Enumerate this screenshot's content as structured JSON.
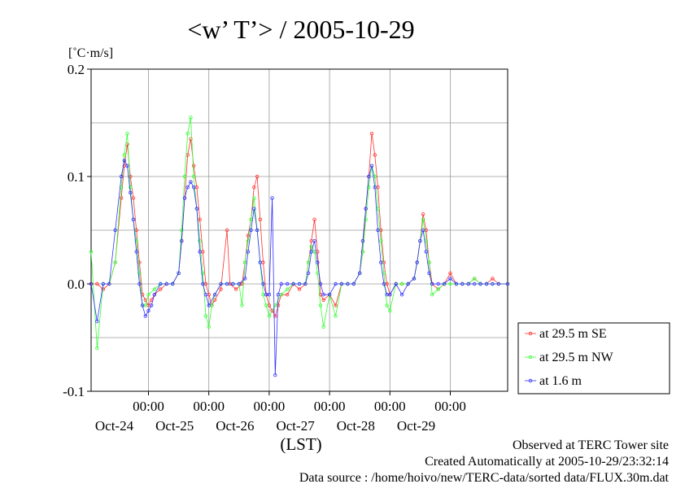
{
  "chart_data": {
    "type": "line",
    "title": "<w’ T’> / 2005-10-29",
    "ylabel": "[˚C·m/s]",
    "xlabel": "(LST)",
    "ylim": [
      -0.1,
      0.2
    ],
    "yticks": [
      {
        "value": 0.2,
        "label": "0.2"
      },
      {
        "value": 0.1,
        "label": "0.1"
      },
      {
        "value": 0.0,
        "label": "0.0"
      },
      {
        "value": -0.1,
        "label": "-0.1"
      }
    ],
    "xlim_days": [
      -0.95,
      5.95
    ],
    "xticks": [
      {
        "time": "00:00",
        "date": "Oct-24",
        "day": 0
      },
      {
        "time": "00:00",
        "date": "Oct-25",
        "day": 1
      },
      {
        "time": "00:00",
        "date": "Oct-26",
        "day": 2
      },
      {
        "time": "00:00",
        "date": "Oct-27",
        "day": 3
      },
      {
        "time": "00:00",
        "date": "Oct-28",
        "day": 4
      },
      {
        "time": "00:00",
        "date": "Oct-29",
        "day": 5
      }
    ],
    "grid": true,
    "legend_position": "right",
    "series": [
      {
        "name": "at 29.5 m SE",
        "color": "#ff3030",
        "points": [
          [
            -0.95,
            0.0
          ],
          [
            -0.85,
            0.0
          ],
          [
            -0.75,
            -0.005
          ],
          [
            -0.65,
            0.0
          ],
          [
            -0.55,
            0.02
          ],
          [
            -0.45,
            0.08
          ],
          [
            -0.4,
            0.11
          ],
          [
            -0.35,
            0.13
          ],
          [
            -0.3,
            0.1
          ],
          [
            -0.25,
            0.08
          ],
          [
            -0.2,
            0.05
          ],
          [
            -0.15,
            0.02
          ],
          [
            -0.1,
            -0.01
          ],
          [
            -0.05,
            -0.015
          ],
          [
            0.0,
            -0.02
          ],
          [
            0.05,
            -0.015
          ],
          [
            0.1,
            -0.01
          ],
          [
            0.2,
            -0.005
          ],
          [
            0.3,
            0.0
          ],
          [
            0.4,
            0.0
          ],
          [
            0.5,
            0.01
          ],
          [
            0.55,
            0.04
          ],
          [
            0.6,
            0.08
          ],
          [
            0.65,
            0.12
          ],
          [
            0.7,
            0.135
          ],
          [
            0.75,
            0.11
          ],
          [
            0.8,
            0.09
          ],
          [
            0.85,
            0.06
          ],
          [
            0.9,
            0.03
          ],
          [
            0.95,
            0.0
          ],
          [
            1.0,
            -0.01
          ],
          [
            1.05,
            -0.02
          ],
          [
            1.1,
            -0.015
          ],
          [
            1.2,
            -0.005
          ],
          [
            1.3,
            0.05
          ],
          [
            1.35,
            0.0
          ],
          [
            1.45,
            -0.005
          ],
          [
            1.55,
            0.0
          ],
          [
            1.6,
            0.02
          ],
          [
            1.65,
            0.045
          ],
          [
            1.7,
            0.06
          ],
          [
            1.75,
            0.09
          ],
          [
            1.8,
            0.1
          ],
          [
            1.85,
            0.06
          ],
          [
            1.9,
            0.02
          ],
          [
            1.95,
            -0.01
          ],
          [
            2.0,
            -0.02
          ],
          [
            2.05,
            -0.025
          ],
          [
            2.1,
            -0.03
          ],
          [
            2.15,
            -0.02
          ],
          [
            2.2,
            -0.01
          ],
          [
            2.3,
            -0.01
          ],
          [
            2.4,
            0.0
          ],
          [
            2.5,
            -0.005
          ],
          [
            2.6,
            0.0
          ],
          [
            2.65,
            0.02
          ],
          [
            2.7,
            0.04
          ],
          [
            2.75,
            0.06
          ],
          [
            2.8,
            0.03
          ],
          [
            2.85,
            -0.01
          ],
          [
            2.9,
            -0.015
          ],
          [
            3.0,
            -0.01
          ],
          [
            3.1,
            -0.02
          ],
          [
            3.2,
            0.0
          ],
          [
            3.3,
            0.0
          ],
          [
            3.4,
            0.0
          ],
          [
            3.5,
            0.01
          ],
          [
            3.55,
            0.03
          ],
          [
            3.6,
            0.07
          ],
          [
            3.65,
            0.1
          ],
          [
            3.7,
            0.14
          ],
          [
            3.75,
            0.12
          ],
          [
            3.8,
            0.09
          ],
          [
            3.85,
            0.05
          ],
          [
            3.9,
            0.02
          ],
          [
            3.95,
            0.0
          ],
          [
            4.0,
            -0.01
          ],
          [
            4.1,
            0.0
          ],
          [
            4.2,
            0.0
          ],
          [
            4.3,
            0.0
          ],
          [
            4.4,
            0.005
          ],
          [
            4.45,
            0.02
          ],
          [
            4.5,
            0.04
          ],
          [
            4.55,
            0.065
          ],
          [
            4.6,
            0.05
          ],
          [
            4.65,
            0.02
          ],
          [
            4.7,
            0.0
          ],
          [
            4.8,
            -0.005
          ],
          [
            4.9,
            0.0
          ],
          [
            5.0,
            0.01
          ],
          [
            5.1,
            0.0
          ],
          [
            5.2,
            0.0
          ],
          [
            5.3,
            0.0
          ],
          [
            5.4,
            0.005
          ],
          [
            5.5,
            0.0
          ],
          [
            5.6,
            0.0
          ],
          [
            5.7,
            0.005
          ],
          [
            5.8,
            0.0
          ],
          [
            5.95,
            0.0
          ]
        ]
      },
      {
        "name": "at 29.5 m NW",
        "color": "#30ff30",
        "points": [
          [
            -0.95,
            0.03
          ],
          [
            -0.85,
            -0.06
          ],
          [
            -0.75,
            0.0
          ],
          [
            -0.65,
            0.0
          ],
          [
            -0.55,
            0.02
          ],
          [
            -0.45,
            0.09
          ],
          [
            -0.4,
            0.12
          ],
          [
            -0.35,
            0.14
          ],
          [
            -0.3,
            0.09
          ],
          [
            -0.25,
            0.06
          ],
          [
            -0.2,
            0.04
          ],
          [
            -0.15,
            0.01
          ],
          [
            -0.1,
            -0.02
          ],
          [
            -0.05,
            -0.02
          ],
          [
            0.0,
            -0.01
          ],
          [
            0.1,
            -0.005
          ],
          [
            0.2,
            0.0
          ],
          [
            0.3,
            0.0
          ],
          [
            0.4,
            0.0
          ],
          [
            0.5,
            0.01
          ],
          [
            0.55,
            0.05
          ],
          [
            0.6,
            0.1
          ],
          [
            0.65,
            0.14
          ],
          [
            0.7,
            0.155
          ],
          [
            0.75,
            0.1
          ],
          [
            0.8,
            0.07
          ],
          [
            0.85,
            0.04
          ],
          [
            0.9,
            0.01
          ],
          [
            0.95,
            -0.03
          ],
          [
            1.0,
            -0.04
          ],
          [
            1.05,
            -0.02
          ],
          [
            1.1,
            -0.01
          ],
          [
            1.2,
            0.0
          ],
          [
            1.3,
            0.0
          ],
          [
            1.4,
            0.0
          ],
          [
            1.5,
            0.0
          ],
          [
            1.55,
            -0.02
          ],
          [
            1.6,
            0.02
          ],
          [
            1.65,
            0.04
          ],
          [
            1.7,
            0.06
          ],
          [
            1.75,
            0.08
          ],
          [
            1.8,
            0.05
          ],
          [
            1.85,
            0.02
          ],
          [
            1.9,
            -0.01
          ],
          [
            1.95,
            -0.02
          ],
          [
            2.0,
            -0.03
          ],
          [
            2.1,
            -0.02
          ],
          [
            2.2,
            -0.01
          ],
          [
            2.3,
            -0.005
          ],
          [
            2.4,
            0.0
          ],
          [
            2.5,
            0.0
          ],
          [
            2.6,
            0.0
          ],
          [
            2.65,
            0.02
          ],
          [
            2.7,
            0.035
          ],
          [
            2.75,
            0.03
          ],
          [
            2.8,
            0.01
          ],
          [
            2.85,
            -0.02
          ],
          [
            2.9,
            -0.04
          ],
          [
            3.0,
            -0.01
          ],
          [
            3.1,
            -0.03
          ],
          [
            3.2,
            0.0
          ],
          [
            3.3,
            0.0
          ],
          [
            3.4,
            0.0
          ],
          [
            3.5,
            0.01
          ],
          [
            3.55,
            0.03
          ],
          [
            3.6,
            0.06
          ],
          [
            3.65,
            0.09
          ],
          [
            3.7,
            0.11
          ],
          [
            3.75,
            0.1
          ],
          [
            3.8,
            0.07
          ],
          [
            3.85,
            0.04
          ],
          [
            3.9,
            0.01
          ],
          [
            3.95,
            -0.02
          ],
          [
            4.0,
            -0.025
          ],
          [
            4.1,
            0.0
          ],
          [
            4.2,
            0.0
          ],
          [
            4.3,
            0.0
          ],
          [
            4.4,
            0.005
          ],
          [
            4.45,
            0.02
          ],
          [
            4.5,
            0.04
          ],
          [
            4.55,
            0.06
          ],
          [
            4.6,
            0.04
          ],
          [
            4.65,
            0.02
          ],
          [
            4.7,
            -0.01
          ],
          [
            4.8,
            -0.005
          ],
          [
            4.9,
            0.0
          ],
          [
            5.0,
            0.0
          ],
          [
            5.1,
            0.0
          ],
          [
            5.2,
            0.0
          ],
          [
            5.3,
            0.0
          ],
          [
            5.4,
            0.005
          ],
          [
            5.5,
            0.0
          ],
          [
            5.6,
            0.0
          ],
          [
            5.7,
            0.0
          ],
          [
            5.8,
            0.0
          ],
          [
            5.95,
            0.0
          ]
        ]
      },
      {
        "name": "at 1.6 m",
        "color": "#3030ff",
        "points": [
          [
            -0.95,
            0.0
          ],
          [
            -0.85,
            -0.035
          ],
          [
            -0.75,
            0.0
          ],
          [
            -0.65,
            0.0
          ],
          [
            -0.55,
            0.05
          ],
          [
            -0.45,
            0.1
          ],
          [
            -0.4,
            0.115
          ],
          [
            -0.35,
            0.11
          ],
          [
            -0.3,
            0.085
          ],
          [
            -0.25,
            0.06
          ],
          [
            -0.2,
            0.03
          ],
          [
            -0.15,
            0.0
          ],
          [
            -0.1,
            -0.02
          ],
          [
            -0.05,
            -0.03
          ],
          [
            0.0,
            -0.025
          ],
          [
            0.05,
            -0.02
          ],
          [
            0.1,
            -0.01
          ],
          [
            0.2,
            0.0
          ],
          [
            0.3,
            0.0
          ],
          [
            0.4,
            0.0
          ],
          [
            0.5,
            0.01
          ],
          [
            0.55,
            0.04
          ],
          [
            0.6,
            0.08
          ],
          [
            0.65,
            0.09
          ],
          [
            0.7,
            0.095
          ],
          [
            0.75,
            0.09
          ],
          [
            0.8,
            0.07
          ],
          [
            0.85,
            0.03
          ],
          [
            0.9,
            0.0
          ],
          [
            0.95,
            -0.01
          ],
          [
            1.0,
            -0.02
          ],
          [
            1.1,
            -0.01
          ],
          [
            1.2,
            0.0
          ],
          [
            1.3,
            0.0
          ],
          [
            1.4,
            0.0
          ],
          [
            1.5,
            0.0
          ],
          [
            1.6,
            0.005
          ],
          [
            1.65,
            0.03
          ],
          [
            1.7,
            0.05
          ],
          [
            1.75,
            0.07
          ],
          [
            1.8,
            0.05
          ],
          [
            1.85,
            0.02
          ],
          [
            1.9,
            0.0
          ],
          [
            1.95,
            -0.01
          ],
          [
            2.0,
            -0.01
          ],
          [
            2.05,
            0.08
          ],
          [
            2.1,
            -0.085
          ],
          [
            2.15,
            -0.01
          ],
          [
            2.2,
            0.0
          ],
          [
            2.3,
            0.0
          ],
          [
            2.4,
            0.0
          ],
          [
            2.5,
            0.0
          ],
          [
            2.6,
            0.0
          ],
          [
            2.65,
            0.01
          ],
          [
            2.7,
            0.03
          ],
          [
            2.75,
            0.04
          ],
          [
            2.8,
            0.02
          ],
          [
            2.85,
            0.0
          ],
          [
            2.9,
            -0.01
          ],
          [
            3.0,
            -0.01
          ],
          [
            3.1,
            0.0
          ],
          [
            3.2,
            0.0
          ],
          [
            3.3,
            0.0
          ],
          [
            3.4,
            0.0
          ],
          [
            3.5,
            0.01
          ],
          [
            3.55,
            0.04
          ],
          [
            3.6,
            0.07
          ],
          [
            3.65,
            0.1
          ],
          [
            3.7,
            0.11
          ],
          [
            3.75,
            0.09
          ],
          [
            3.8,
            0.05
          ],
          [
            3.85,
            0.02
          ],
          [
            3.9,
            0.0
          ],
          [
            3.95,
            -0.01
          ],
          [
            4.0,
            -0.01
          ],
          [
            4.1,
            0.0
          ],
          [
            4.2,
            -0.01
          ],
          [
            4.3,
            0.0
          ],
          [
            4.4,
            0.005
          ],
          [
            4.45,
            0.02
          ],
          [
            4.5,
            0.04
          ],
          [
            4.55,
            0.05
          ],
          [
            4.6,
            0.03
          ],
          [
            4.65,
            0.01
          ],
          [
            4.7,
            0.0
          ],
          [
            4.8,
            0.0
          ],
          [
            4.9,
            0.0
          ],
          [
            5.0,
            0.005
          ],
          [
            5.1,
            0.0
          ],
          [
            5.2,
            0.0
          ],
          [
            5.3,
            0.0
          ],
          [
            5.4,
            0.0
          ],
          [
            5.5,
            0.0
          ],
          [
            5.6,
            0.0
          ],
          [
            5.7,
            0.0
          ],
          [
            5.8,
            0.0
          ],
          [
            5.95,
            0.0
          ]
        ]
      }
    ]
  },
  "footer": {
    "line1": "Observed at TERC Tower site",
    "line2": "Created Automatically at 2005-10-29/23:32:14",
    "line3": "Data source : /home/hoivo/new/TERC-data/sorted  data/FLUX.30m.dat"
  }
}
